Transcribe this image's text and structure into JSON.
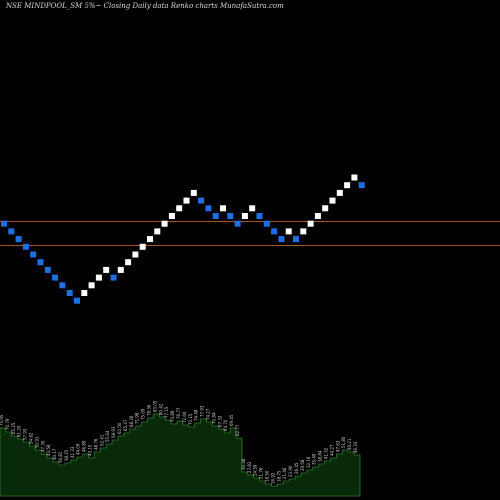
{
  "header": {
    "title": "NSE MINDPOOL_SM 5%~ Closing Daily data  Renko  charts MunafaSutra.com"
  },
  "colors": {
    "background": "#000000",
    "up_brick": "#ffffff",
    "down_brick": "#1f6fe0",
    "resistance_line": "#a8522a",
    "volume_fill": "#082a08",
    "volume_stroke": "#2e7a2e",
    "volume_label": "#d0d0d0"
  },
  "chart_data": [
    {
      "type": "renko",
      "box_size": "5%",
      "bricks": [
        "down",
        "down",
        "down",
        "down",
        "down",
        "down",
        "down",
        "down",
        "down",
        "down",
        "down",
        "up",
        "up",
        "up",
        "up",
        "down",
        "up",
        "up",
        "up",
        "up",
        "up",
        "up",
        "up",
        "up",
        "up",
        "up",
        "up",
        "down",
        "down",
        "down",
        "up",
        "down",
        "down",
        "up",
        "up",
        "down",
        "down",
        "down",
        "down",
        "up",
        "down",
        "up",
        "up",
        "up",
        "up",
        "up",
        "up",
        "up",
        "up",
        "down"
      ],
      "horizontal_lines": 2,
      "grid": false
    },
    {
      "type": "area",
      "series": [
        {
          "values": [
            68,
            64,
            60,
            57,
            54,
            50,
            46,
            42,
            38,
            34,
            31,
            33,
            36,
            39,
            42,
            38,
            44,
            48,
            52,
            56,
            60,
            63,
            67,
            70,
            74,
            78,
            82,
            79,
            76,
            72,
            75,
            71,
            69,
            73,
            77,
            74,
            70,
            67,
            63,
            68,
            58,
            24,
            21,
            18,
            15,
            12,
            10,
            12,
            15,
            17,
            20,
            23,
            26,
            29,
            32,
            35,
            38,
            42,
            46,
            44,
            41
          ],
          "labels": [
            "75.95",
            "70.79",
            "65.25",
            "61.20",
            "57.93",
            "54.82",
            "50.91",
            "47.30",
            "43.58",
            "40.17",
            "36.81",
            "38.25",
            "41.33",
            "44.09",
            "46.89",
            "43.10",
            "48.76",
            "52.41",
            "55.64",
            "58.93",
            "62.50",
            "65.47",
            "68.26",
            "71.98",
            "75.09",
            "78.36",
            "83.05",
            "80.42",
            "77.15",
            "73.89",
            "76.77",
            "72.60",
            "70.15",
            "74.48",
            "77.93",
            "74.27",
            "70.84",
            "67.33",
            "64.70",
            "69.45",
            "62.77",
            "30.48",
            "27.82",
            "24.59",
            "21.76",
            "18.50",
            "16.92",
            "18.75",
            "21.46",
            "23.90",
            "26.45",
            "29.58",
            "32.16",
            "35.49",
            "38.84",
            "41.52",
            "44.27",
            "47.63",
            "51.80",
            "49.21",
            "46.33"
          ]
        }
      ],
      "grid": false
    }
  ]
}
